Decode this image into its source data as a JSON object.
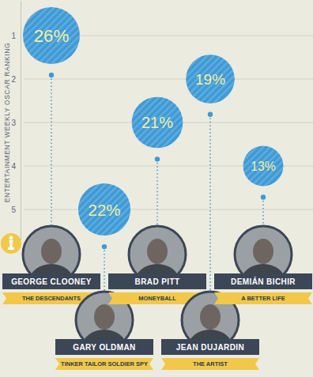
{
  "chart_data": {
    "type": "bubble",
    "y_label": "ENTERTAINMENT WEEKLY OSCAR RANKING",
    "categories": [
      "GEORGE CLOONEY",
      "GARY OLDMAN",
      "BRAD PITT",
      "JEAN DUJARDIN",
      "DEMIÁN BICHIR"
    ],
    "films": [
      "THE DESCENDANTS",
      "TINKER TAILOR SOLDIER SPY",
      "MONEYBALL",
      "THE ARTIST",
      "A BETTER LIFE"
    ],
    "values": [
      1,
      5,
      3,
      2,
      4
    ],
    "sizes": [
      26,
      22,
      21,
      19,
      13
    ],
    "size_labels": [
      "26%",
      "22%",
      "21%",
      "19%",
      "13%"
    ],
    "ylim": [
      0.2,
      5.7
    ],
    "yticks": [
      1,
      2,
      3,
      4,
      5
    ],
    "grid": true,
    "tick_labels": "y",
    "color": "#3d9ad6"
  }
}
